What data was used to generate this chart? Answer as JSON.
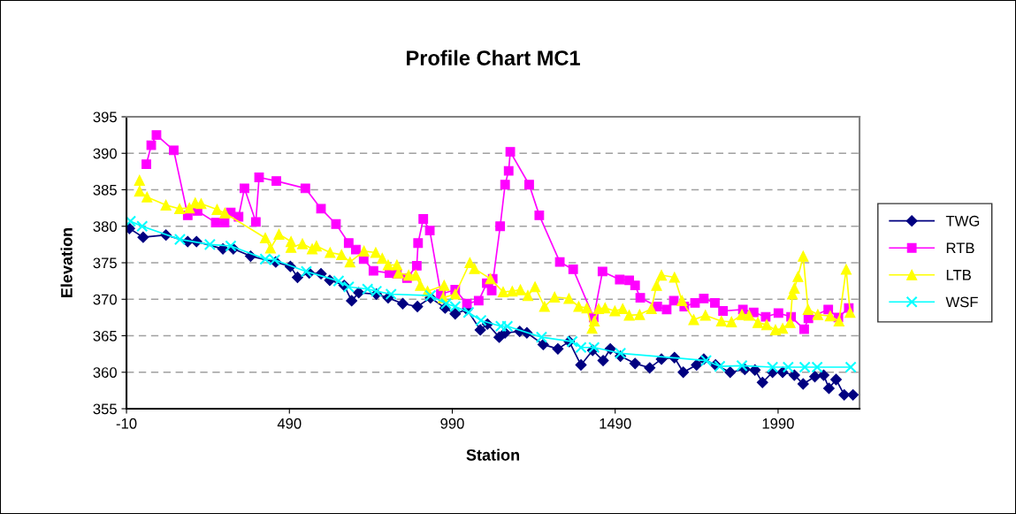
{
  "chart_data": {
    "type": "line",
    "title": "Profile Chart MC1",
    "xlabel": "Station",
    "ylabel": "Elevation",
    "xlim": [
      -10,
      2240
    ],
    "xticks": [
      -10,
      490,
      990,
      1490,
      1990
    ],
    "ylim": [
      355,
      395
    ],
    "yticks": [
      355,
      360,
      365,
      370,
      375,
      380,
      385,
      390,
      395
    ],
    "grid": "y",
    "legend": "right",
    "line_style": "solid",
    "series": [
      {
        "name": "TWG",
        "color": "#000080",
        "marker": "diamond",
        "x": [
          -1,
          41,
          111,
          178,
          205,
          286,
          318,
          371,
          448,
          493,
          515,
          551,
          587,
          614,
          658,
          681,
          703,
          757,
          793,
          838,
          883,
          923,
          968,
          999,
          1035,
          1076,
          1098,
          1134,
          1152,
          1197,
          1219,
          1269,
          1314,
          1349,
          1385,
          1421,
          1453,
          1475,
          1506,
          1551,
          1596,
          1632,
          1672,
          1699,
          1740,
          1762,
          1798,
          1843,
          1888,
          1919,
          1942,
          1973,
          2004,
          2040,
          2067,
          2103,
          2130,
          2146,
          2168,
          2193,
          2220
        ],
        "values": [
          379.7,
          378.5,
          378.8,
          377.9,
          377.9,
          376.9,
          376.9,
          375.9,
          375.1,
          374.5,
          373.0,
          373.6,
          373.5,
          372.6,
          371.9,
          369.8,
          370.9,
          370.7,
          370.2,
          369.4,
          369.0,
          370.2,
          368.8,
          368.0,
          368.6,
          365.8,
          366.6,
          364.8,
          365.4,
          365.6,
          365.4,
          363.8,
          363.2,
          364.2,
          361.0,
          363.0,
          361.6,
          363.2,
          362.2,
          361.2,
          360.6,
          361.8,
          362.0,
          360.0,
          361.0,
          361.8,
          361.0,
          360.0,
          360.4,
          360.3,
          358.6,
          360.0,
          360.0,
          359.6,
          358.4,
          359.4,
          359.6,
          357.8,
          359.0,
          356.9,
          356.9
        ]
      },
      {
        "name": "RTB",
        "color": "#ff00ff",
        "marker": "square",
        "x": [
          51,
          66,
          82,
          135,
          178,
          208,
          264,
          291,
          310,
          334,
          352,
          387,
          397,
          450,
          539,
          587,
          633,
          672,
          694,
          718,
          748,
          797,
          820,
          851,
          881,
          885,
          901,
          921,
          955,
          999,
          1035,
          1071,
          1096,
          1114,
          1111,
          1137,
          1152,
          1163,
          1168,
          1226,
          1257,
          1320,
          1361,
          1424,
          1451,
          1504,
          1533,
          1551,
          1567,
          1619,
          1648,
          1670,
          1702,
          1735,
          1762,
          1796,
          1821,
          1882,
          1915,
          1952,
          1991,
          2030,
          2070,
          2083,
          2144,
          2175,
          2207
        ],
        "values": [
          388.5,
          391.1,
          392.5,
          390.4,
          381.5,
          382.1,
          380.5,
          380.5,
          381.9,
          381.3,
          385.2,
          380.6,
          386.7,
          386.2,
          385.2,
          382.4,
          380.3,
          377.7,
          376.8,
          375.5,
          373.9,
          373.6,
          373.5,
          372.9,
          374.6,
          377.7,
          381.0,
          379.4,
          370.7,
          371.3,
          369.4,
          369.8,
          372.2,
          372.8,
          371.2,
          380.0,
          385.7,
          387.6,
          390.2,
          385.7,
          381.5,
          375.1,
          374.1,
          367.5,
          373.8,
          372.7,
          372.6,
          371.9,
          370.2,
          369.0,
          368.6,
          369.8,
          369.0,
          369.5,
          370.1,
          369.5,
          368.4,
          368.6,
          368.2,
          367.6,
          368.1,
          367.6,
          365.9,
          367.4,
          368.6,
          367.5,
          368.8
        ]
      },
      {
        "name": "LTB",
        "color": "#ffff00",
        "marker": "triangle",
        "x": [
          30,
          30,
          53,
          111,
          153,
          183,
          201,
          219,
          268,
          292,
          416,
          432,
          458,
          495,
          495,
          530,
          560,
          573,
          615,
          650,
          676,
          719,
          755,
          775,
          793,
          820,
          825,
          856,
          878,
          892,
          914,
          965,
          962,
          999,
          1044,
          1058,
          1107,
          1146,
          1174,
          1199,
          1222,
          1244,
          1273,
          1304,
          1348,
          1378,
          1403,
          1419,
          1426,
          1439,
          1459,
          1489,
          1513,
          1533,
          1565,
          1601,
          1617,
          1632,
          1672,
          1695,
          1731,
          1767,
          1816,
          1847,
          1879,
          1901,
          1928,
          1955,
          1982,
          2004,
          2027,
          2034,
          2040,
          2051,
          2067,
          2082,
          2112,
          2150,
          2177,
          2199,
          2211
        ],
        "values": [
          386.3,
          384.8,
          384.0,
          382.9,
          382.4,
          382.5,
          383.2,
          383.1,
          382.3,
          381.8,
          378.4,
          377.0,
          378.9,
          377.9,
          377.1,
          377.6,
          376.9,
          377.3,
          376.4,
          376.1,
          375.1,
          376.6,
          376.4,
          375.6,
          374.7,
          374.7,
          373.6,
          373.3,
          373.3,
          371.9,
          371.1,
          371.9,
          370.2,
          370.7,
          375.0,
          374.2,
          372.8,
          371.0,
          371.1,
          371.3,
          370.5,
          371.7,
          369.0,
          370.3,
          370.1,
          369.0,
          368.8,
          366.0,
          367.0,
          368.7,
          368.8,
          368.4,
          368.7,
          367.8,
          367.9,
          368.7,
          371.9,
          373.3,
          373.0,
          369.8,
          367.2,
          367.8,
          367.0,
          366.9,
          367.9,
          367.8,
          366.8,
          366.5,
          365.8,
          366.0,
          366.8,
          370.7,
          371.5,
          373.1,
          375.9,
          368.6,
          367.9,
          367.7,
          367.0,
          374.1,
          368.2
        ]
      },
      {
        "name": "WSF",
        "color": "#00ffff",
        "marker": "cross",
        "x": [
          2,
          38,
          154,
          246,
          310,
          416,
          445,
          542,
          641,
          672,
          730,
          757,
          802,
          923,
          971,
          999,
          1040,
          1078,
          1139,
          1159,
          1264,
          1358,
          1385,
          1425,
          1506,
          1769,
          1811,
          1879,
          1973,
          2021,
          2072,
          2110,
          2213
        ],
        "values": [
          380.7,
          380.0,
          378.2,
          377.5,
          377.3,
          375.5,
          375.4,
          373.8,
          372.5,
          371.7,
          371.4,
          371.1,
          370.7,
          370.5,
          369.4,
          369.0,
          368.2,
          367.1,
          366.3,
          366.3,
          364.8,
          364.2,
          363.4,
          363.4,
          362.6,
          361.6,
          360.8,
          360.9,
          360.7,
          360.7,
          360.7,
          360.7,
          360.7
        ]
      }
    ]
  }
}
